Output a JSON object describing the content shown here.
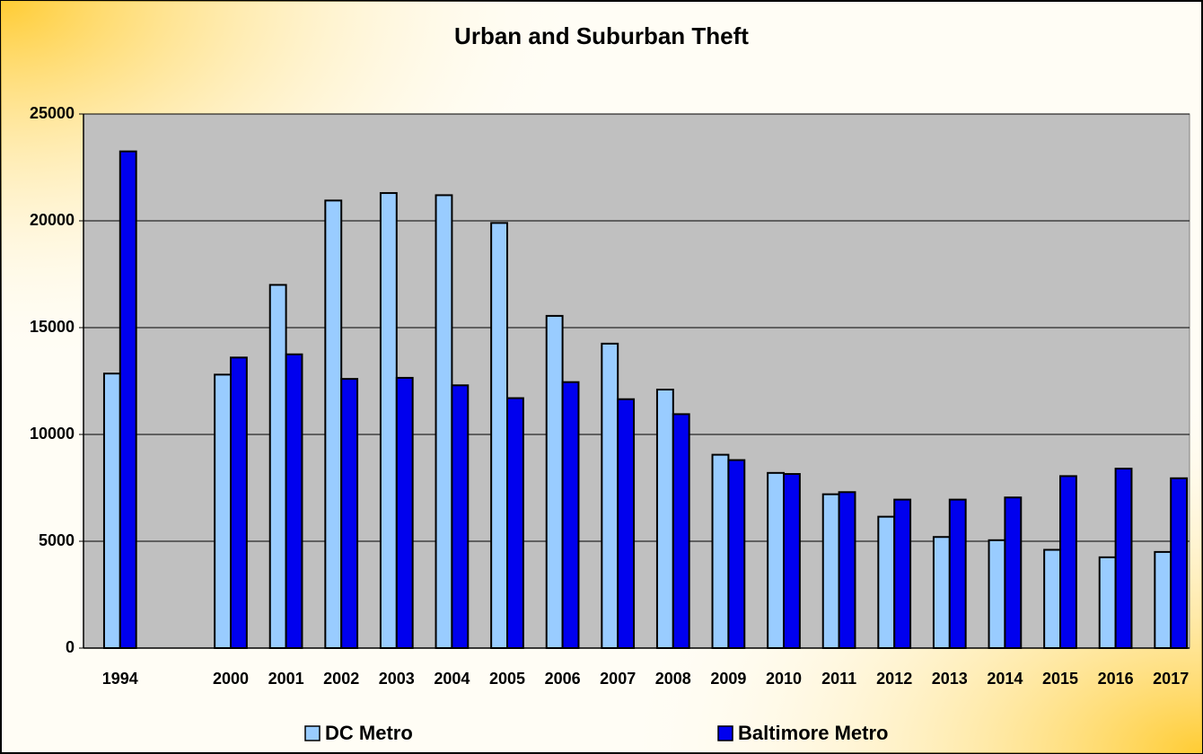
{
  "chart_data": {
    "type": "bar",
    "title": "Urban and Suburban Theft",
    "categories": [
      "1994",
      null,
      "2000",
      "2001",
      "2002",
      "2003",
      "2004",
      "2005",
      "2006",
      "2007",
      "2008",
      "2009",
      "2010",
      "2011",
      "2012",
      "2013",
      "2014",
      "2015",
      "2016",
      "2017"
    ],
    "series": [
      {
        "name": "DC Metro",
        "color": "#99ccff",
        "values": [
          12850,
          null,
          12800,
          17000,
          20950,
          21300,
          21200,
          19900,
          15550,
          14250,
          12100,
          9050,
          8200,
          7200,
          6150,
          5200,
          5050,
          4600,
          4250,
          4500
        ]
      },
      {
        "name": "Baltimore Metro",
        "color": "#0000ee",
        "values": [
          23250,
          null,
          13600,
          13750,
          12600,
          12650,
          12300,
          11700,
          12450,
          11650,
          10950,
          8800,
          8150,
          7300,
          6950,
          6950,
          7050,
          8050,
          8400,
          7950
        ]
      }
    ],
    "ylim": [
      0,
      25000
    ],
    "yticks": [
      0,
      5000,
      10000,
      15000,
      20000,
      25000
    ],
    "grid": true,
    "legend": "bottom"
  }
}
